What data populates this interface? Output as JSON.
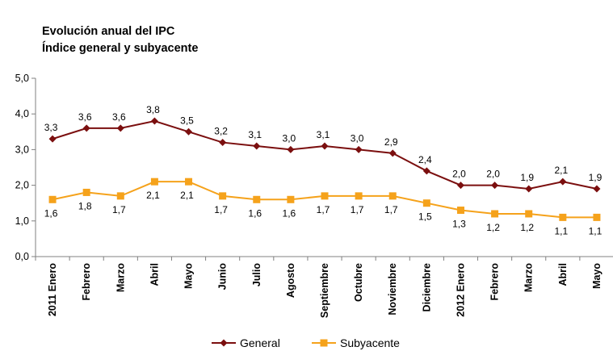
{
  "chart_data": {
    "type": "line",
    "title": "Evolución anual del IPC",
    "subtitle": "Índice general y subyacente",
    "categories": [
      "2011 Enero",
      "Febrero",
      "Marzo",
      "Abril",
      "Mayo",
      "Junio",
      "Julio",
      "Agosto",
      "Septiembre",
      "Octubre",
      "Noviembre",
      "Diciembre",
      "2012 Enero",
      "Febrero",
      "Marzo",
      "Abril",
      "Mayo"
    ],
    "yticks": [
      "0,0",
      "1,0",
      "2,0",
      "3,0",
      "4,0",
      "5,0"
    ],
    "ylim": [
      0,
      5
    ],
    "grid": false,
    "legend_position": "bottom",
    "series": [
      {
        "name": "General",
        "color": "#7b0f0f",
        "marker": "diamond",
        "values": [
          3.3,
          3.6,
          3.6,
          3.8,
          3.5,
          3.2,
          3.1,
          3.0,
          3.1,
          3.0,
          2.9,
          2.4,
          2.0,
          2.0,
          1.9,
          2.1,
          1.9
        ],
        "labels": [
          "3,3",
          "3,6",
          "3,6",
          "3,8",
          "3,5",
          "3,2",
          "3,1",
          "3,0",
          "3,1",
          "3,0",
          "2,9",
          "2,4",
          "2,0",
          "2,0",
          "1,9",
          "2,1",
          "1,9"
        ]
      },
      {
        "name": "Subyacente",
        "color": "#f5a21b",
        "marker": "square",
        "values": [
          1.6,
          1.8,
          1.7,
          2.1,
          2.1,
          1.7,
          1.6,
          1.6,
          1.7,
          1.7,
          1.7,
          1.5,
          1.3,
          1.2,
          1.2,
          1.1,
          1.1
        ],
        "labels": [
          "1,6",
          "1,8",
          "1,7",
          "2,1",
          "2,1",
          "1,7",
          "1,6",
          "1,6",
          "1,7",
          "1,7",
          "1,7",
          "1,5",
          "1,3",
          "1,2",
          "1,2",
          "1,1",
          "1,1"
        ]
      }
    ]
  }
}
